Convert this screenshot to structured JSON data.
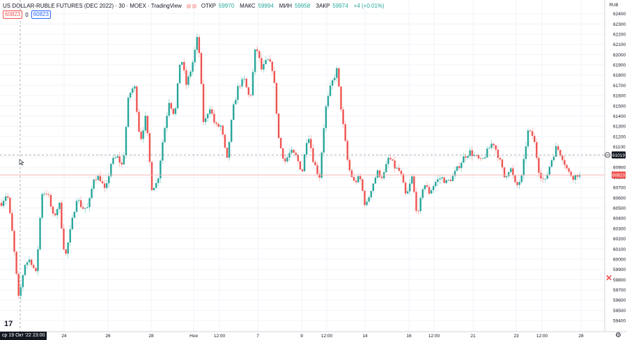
{
  "legend": {
    "symbol": "US DOLLAR-RUBLE FUTURES (DEC 2022) · 30 · MOEX · TradingView",
    "open_label": "ОТКР",
    "open": "59970",
    "high_label": "МАКС",
    "high": "59994",
    "low_label": "МИН",
    "low": "59958",
    "close_label": "ЗАКР",
    "close": "59974",
    "change": "+4 (+0.01%)"
  },
  "pills": {
    "left": "60823",
    "zero": "0",
    "right": "60823"
  },
  "crosshair": {
    "price_label": "61019",
    "time_label": "ср 19 Окт '22   23:00"
  },
  "current_price_label": "60823",
  "currency": "RUB",
  "colors": {
    "up": "#26a69a",
    "down": "#ef5350",
    "grid": "#f0f3fa",
    "axis_text": "#131722",
    "last_line": "#f4b6b6"
  },
  "chart_data": {
    "type": "candlestick",
    "title": "US DOLLAR-RUBLE FUTURES (DEC 2022)",
    "interval": "30",
    "ylim": [
      59400,
      62500
    ],
    "y_ticks": [
      59400,
      59500,
      59600,
      59700,
      59800,
      59900,
      60000,
      60100,
      60200,
      60300,
      60400,
      60500,
      60600,
      60700,
      60800,
      60900,
      61000,
      61100,
      61200,
      61300,
      61400,
      61500,
      61600,
      61700,
      61800,
      61900,
      62000,
      62100,
      62200,
      62300,
      62400
    ],
    "x_labels": [
      "24",
      "26",
      "28",
      "Ноя",
      "12:00",
      "7",
      "9",
      "12:00",
      "14",
      "16",
      "12:00",
      "21",
      "23",
      "12:00",
      "28"
    ],
    "grid": true,
    "price_path": [
      60550,
      60650,
      60200,
      59600,
      59950,
      60000,
      59850,
      60650,
      60650,
      60400,
      60550,
      60000,
      60300,
      60600,
      60500,
      60500,
      60800,
      60800,
      60650,
      60950,
      61000,
      60900,
      61600,
      61700,
      61150,
      61400,
      60700,
      60750,
      61200,
      61550,
      61400,
      62000,
      61700,
      61900,
      62200,
      61300,
      61500,
      61300,
      61300,
      60950,
      61450,
      61700,
      61750,
      61550,
      62100,
      61850,
      61950,
      61850,
      61150,
      60950,
      61050,
      61000,
      60850,
      61250,
      60950,
      60800,
      61450,
      61700,
      61850,
      61350,
      60900,
      60750,
      60800,
      60500,
      60700,
      60850,
      60800,
      61000,
      60900,
      60850,
      60600,
      60800,
      60400,
      60750,
      60650,
      60750,
      60800,
      60750,
      60800,
      60900,
      61000,
      61050,
      61000,
      60950,
      61050,
      61150,
      61000,
      60800,
      60900,
      60700,
      60800,
      61250,
      61200,
      60850,
      60750,
      60950,
      61100,
      61000,
      60850,
      60800,
      60850
    ],
    "last": 60823
  }
}
